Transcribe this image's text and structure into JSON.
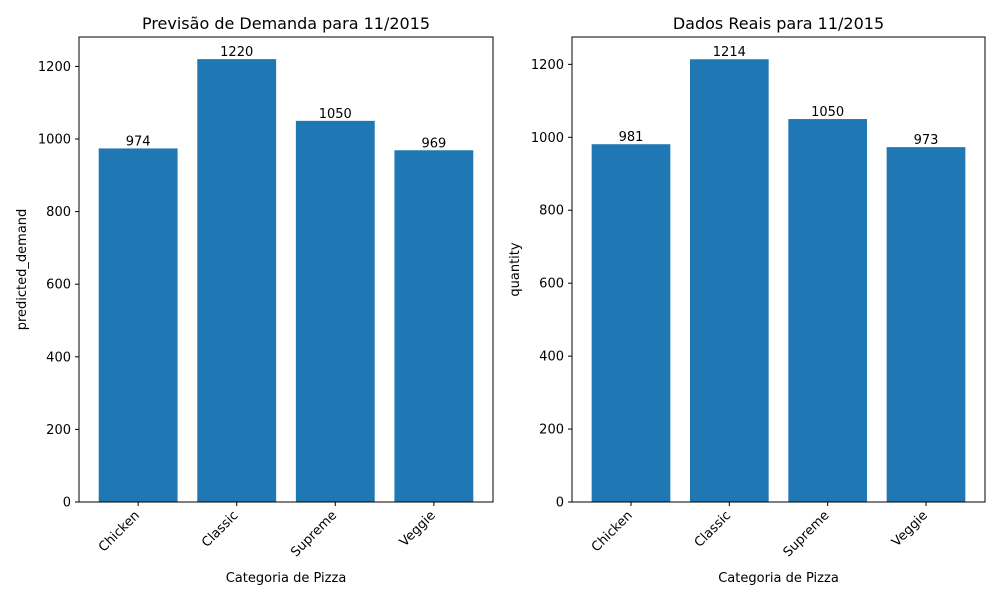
{
  "chart_data": [
    {
      "type": "bar",
      "title": "Previsão de Demanda para 11/2015",
      "xlabel": "Categoria de Pizza",
      "ylabel": "predicted_demand",
      "categories": [
        "Chicken",
        "Classic",
        "Supreme",
        "Veggie"
      ],
      "values": [
        974,
        1220,
        1050,
        969
      ],
      "data_labels": [
        "974",
        "1220",
        "1050",
        "969"
      ],
      "ylim": [
        0,
        1281
      ],
      "yticks": [
        0,
        200,
        400,
        600,
        800,
        1000,
        1200
      ],
      "bar_color": "#1f77b4",
      "grid": false,
      "xtick_rotation": 45
    },
    {
      "type": "bar",
      "title": "Dados Reais para 11/2015",
      "xlabel": "Categoria de Pizza",
      "ylabel": "quantity",
      "categories": [
        "Chicken",
        "Classic",
        "Supreme",
        "Veggie"
      ],
      "values": [
        981,
        1214,
        1050,
        973
      ],
      "data_labels": [
        "981",
        "1214",
        "1050",
        "973"
      ],
      "ylim": [
        0,
        1275
      ],
      "yticks": [
        0,
        200,
        400,
        600,
        800,
        1000,
        1200
      ],
      "bar_color": "#1f77b4",
      "grid": false,
      "xtick_rotation": 45
    }
  ]
}
